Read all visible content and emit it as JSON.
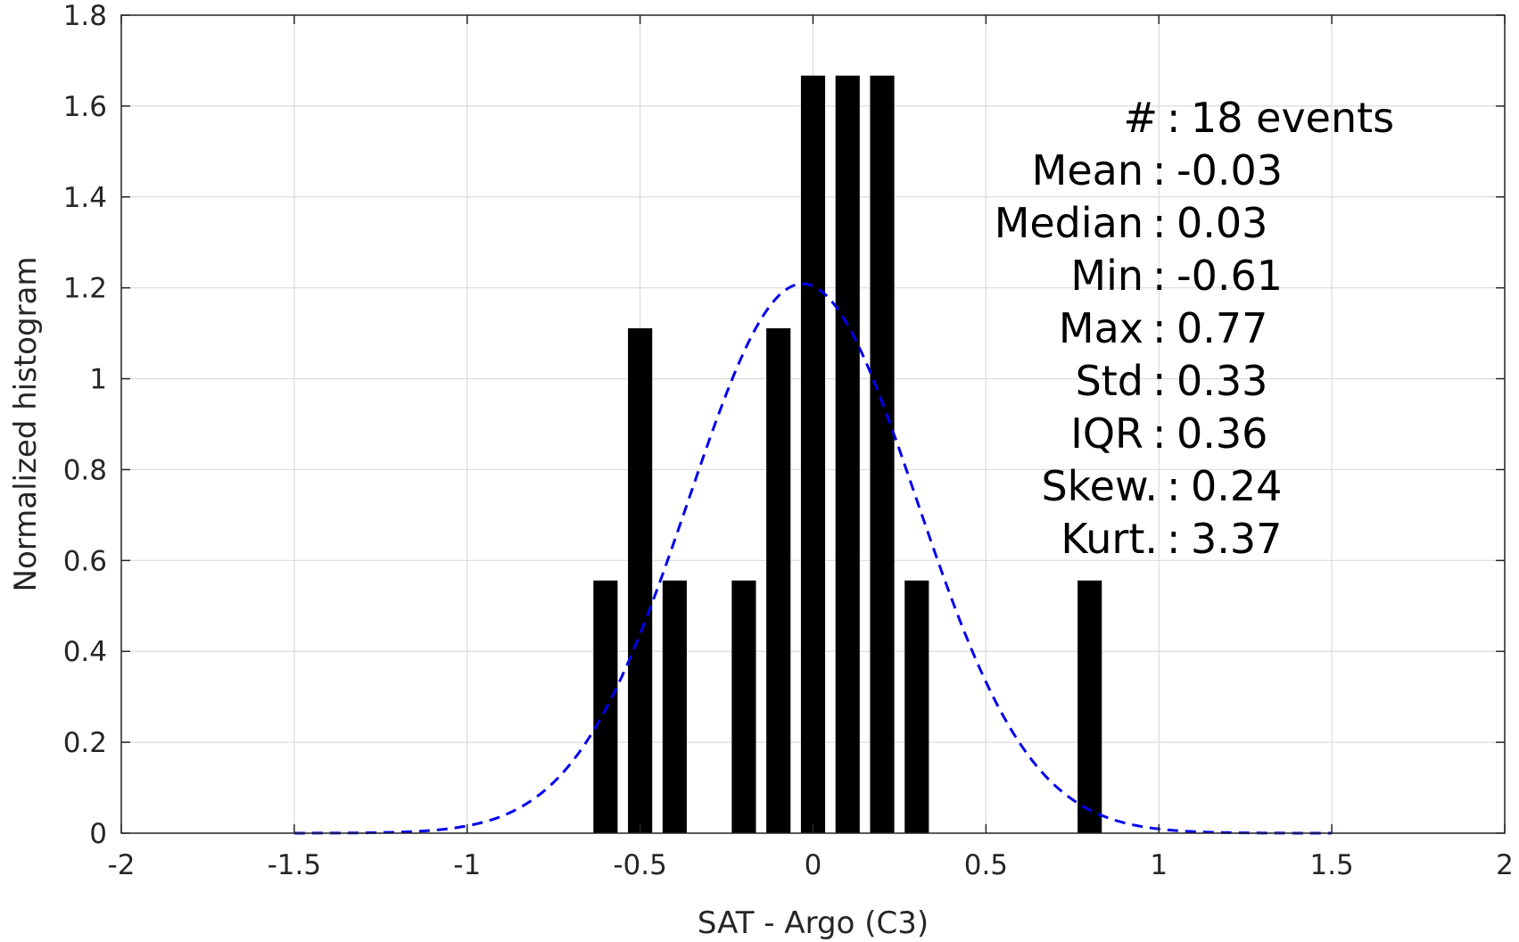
{
  "chart_data": {
    "type": "bar",
    "title": "",
    "xlabel": "SAT - Argo (C3)",
    "ylabel": "Normalized histogram",
    "xlim": [
      -2,
      2
    ],
    "ylim": [
      0,
      1.8
    ],
    "grid": true,
    "x_ticks": [
      "-2",
      "-1.5",
      "-1",
      "-0.5",
      "0",
      "0.5",
      "1",
      "1.5",
      "2"
    ],
    "x_tick_values": [
      -2,
      -1.5,
      -1,
      -0.5,
      0,
      0.5,
      1,
      1.5,
      2
    ],
    "y_ticks": [
      "0",
      "0.2",
      "0.4",
      "0.6",
      "0.8",
      "1",
      "1.2",
      "1.4",
      "1.6",
      "1.8"
    ],
    "y_tick_values": [
      0,
      0.2,
      0.4,
      0.6,
      0.8,
      1.0,
      1.2,
      1.4,
      1.6,
      1.8
    ],
    "bin_width": 0.1,
    "bar_color": "#000000",
    "bars": {
      "x": [
        -0.6,
        -0.5,
        -0.4,
        -0.2,
        -0.1,
        0.0,
        0.1,
        0.2,
        0.3,
        0.8
      ],
      "values": [
        0.556,
        1.111,
        0.556,
        0.556,
        1.111,
        1.667,
        1.667,
        1.667,
        0.556,
        0.556
      ]
    },
    "fit_curve": {
      "style": "dashed",
      "color": "#0000ee",
      "x_range": [
        -1.5,
        1.5
      ],
      "mean": -0.03,
      "std": 0.33
    },
    "annotations": [
      {
        "label": "#  ",
        "value": "18 events"
      },
      {
        "label": "Mean",
        "value": "-0.03"
      },
      {
        "label": "Median",
        "value": "0.03"
      },
      {
        "label": "Min",
        "value": "-0.61"
      },
      {
        "label": "Max",
        "value": "0.77"
      },
      {
        "label": "Std",
        "value": "0.33"
      },
      {
        "label": "IQR",
        "value": "0.36"
      },
      {
        "label": "Skew.",
        "value": "0.24"
      },
      {
        "label": "Kurt.",
        "value": "3.37"
      }
    ]
  }
}
